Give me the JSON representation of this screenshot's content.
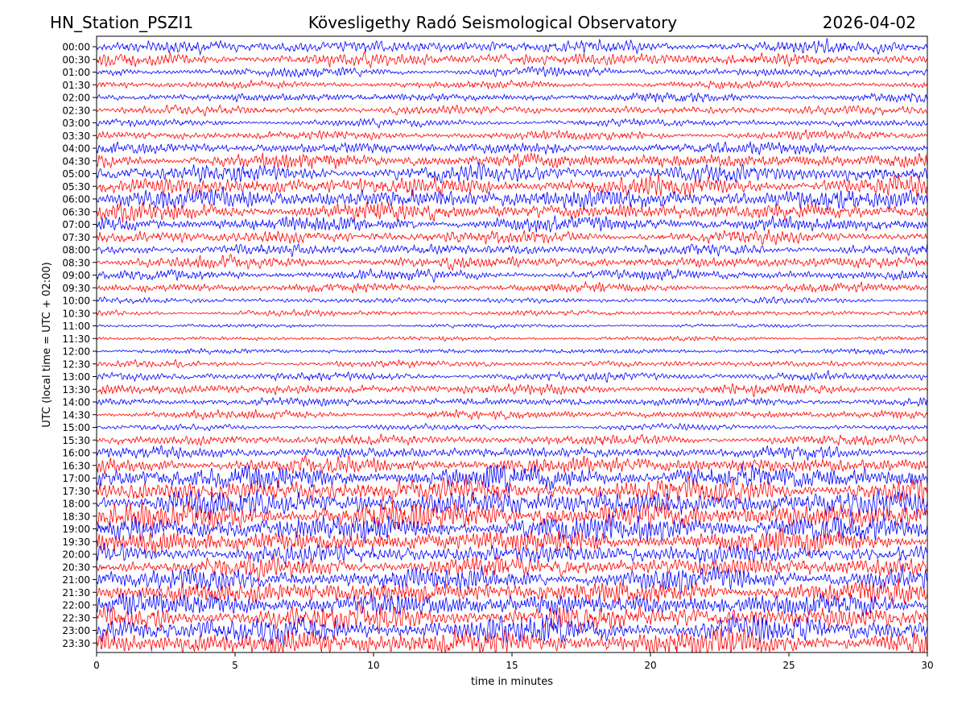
{
  "chart_data": {
    "type": "line",
    "title_left": "HN_Station_PSZI1",
    "title": "Kövesligethy Radó Seismological Observatory",
    "title_right": "2026-04-02",
    "xlabel": "time in minutes",
    "ylabel": "UTC (local time = UTC + 02:00)",
    "xlim": [
      0,
      30
    ],
    "x_ticks": [
      0,
      5,
      10,
      15,
      20,
      25,
      30
    ],
    "y_tick_labels": [
      "00:00",
      "00:30",
      "01:00",
      "01:30",
      "02:00",
      "02:30",
      "03:00",
      "03:30",
      "04:00",
      "04:30",
      "05:00",
      "05:30",
      "06:00",
      "06:30",
      "07:00",
      "07:30",
      "08:00",
      "08:30",
      "09:00",
      "09:30",
      "10:00",
      "10:30",
      "11:00",
      "11:30",
      "12:00",
      "12:30",
      "13:00",
      "13:30",
      "14:00",
      "14:30",
      "15:00",
      "15:30",
      "16:00",
      "16:30",
      "17:00",
      "17:30",
      "18:00",
      "18:30",
      "19:00",
      "19:30",
      "20:00",
      "20:30",
      "21:00",
      "21:30",
      "22:00",
      "22:30",
      "23:00",
      "23:30"
    ],
    "trace_colors": [
      "#0000ff",
      "#ff0000"
    ],
    "trace_relative_amplitude": [
      0.9,
      0.9,
      0.6,
      0.5,
      0.6,
      0.6,
      0.5,
      0.6,
      0.8,
      1.0,
      1.2,
      1.3,
      1.4,
      1.2,
      1.0,
      0.9,
      0.8,
      0.8,
      0.7,
      0.6,
      0.4,
      0.4,
      0.25,
      0.3,
      0.35,
      0.45,
      0.6,
      0.7,
      0.6,
      0.55,
      0.4,
      0.7,
      0.8,
      1.1,
      1.6,
      1.7,
      1.8,
      1.9,
      1.8,
      1.6,
      1.4,
      1.4,
      1.5,
      1.6,
      1.6,
      1.7,
      1.8,
      1.8
    ],
    "grid": false,
    "legend": "none"
  }
}
